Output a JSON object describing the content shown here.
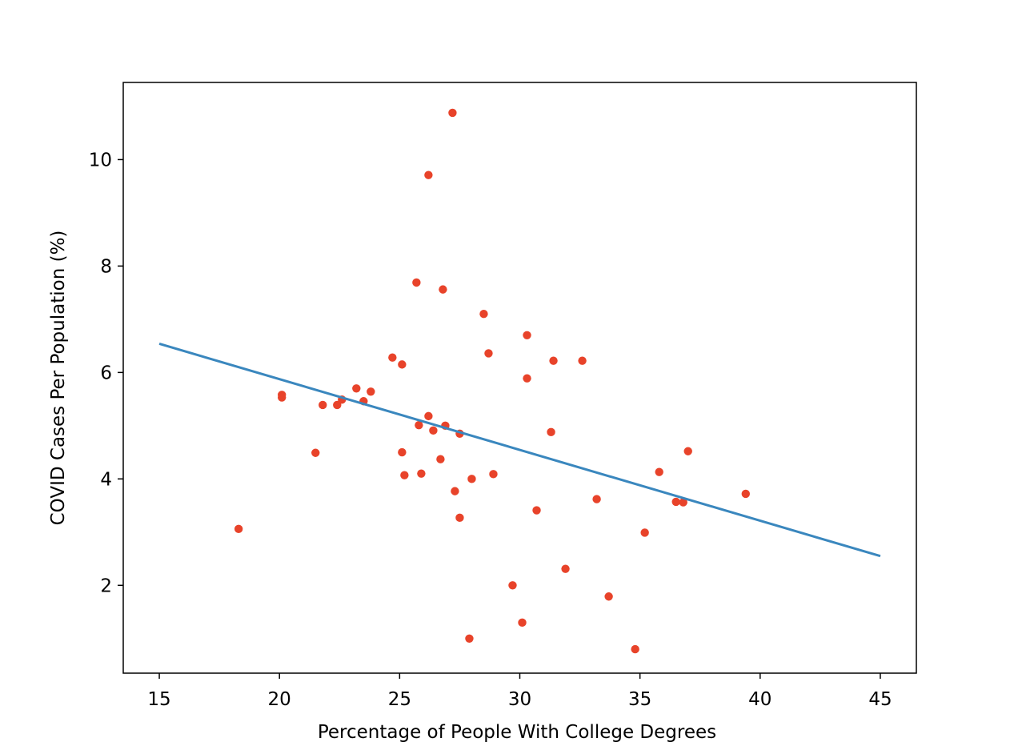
{
  "chart_data": {
    "type": "scatter",
    "title": "",
    "xlabel": "Percentage of People With College Degrees",
    "ylabel": "COVID Cases Per Population (%)",
    "xlim": [
      13.5,
      46.5
    ],
    "ylim": [
      0.35,
      11.45
    ],
    "xticks": [
      15,
      20,
      25,
      30,
      35,
      40,
      45
    ],
    "yticks": [
      2,
      4,
      6,
      8,
      10
    ],
    "grid": false,
    "legend": "none",
    "point_color": "#e8432a",
    "line_color": "#3a87be",
    "points": [
      [
        18.3,
        3.06
      ],
      [
        20.1,
        5.58
      ],
      [
        20.1,
        5.53
      ],
      [
        21.5,
        4.49
      ],
      [
        21.8,
        5.39
      ],
      [
        22.4,
        5.39
      ],
      [
        22.6,
        5.49
      ],
      [
        23.2,
        5.7
      ],
      [
        23.5,
        5.46
      ],
      [
        23.8,
        5.64
      ],
      [
        24.7,
        6.28
      ],
      [
        25.1,
        6.15
      ],
      [
        25.1,
        4.5
      ],
      [
        25.2,
        4.07
      ],
      [
        25.7,
        7.69
      ],
      [
        25.8,
        5.01
      ],
      [
        25.9,
        4.1
      ],
      [
        26.2,
        9.71
      ],
      [
        26.2,
        5.18
      ],
      [
        26.4,
        4.91
      ],
      [
        26.7,
        4.37
      ],
      [
        26.8,
        7.56
      ],
      [
        26.9,
        5.0
      ],
      [
        27.2,
        10.88
      ],
      [
        27.3,
        3.77
      ],
      [
        27.5,
        4.85
      ],
      [
        27.5,
        3.27
      ],
      [
        27.9,
        1.0
      ],
      [
        28.0,
        4.0
      ],
      [
        28.5,
        7.1
      ],
      [
        28.7,
        6.36
      ],
      [
        28.9,
        4.09
      ],
      [
        29.7,
        2.0
      ],
      [
        30.1,
        1.3
      ],
      [
        30.3,
        6.7
      ],
      [
        30.3,
        5.89
      ],
      [
        30.7,
        3.41
      ],
      [
        31.3,
        4.88
      ],
      [
        31.4,
        6.22
      ],
      [
        31.9,
        2.31
      ],
      [
        32.6,
        6.22
      ],
      [
        33.2,
        3.62
      ],
      [
        33.7,
        1.79
      ],
      [
        34.8,
        0.8
      ],
      [
        35.2,
        2.99
      ],
      [
        35.8,
        4.13
      ],
      [
        36.5,
        3.57
      ],
      [
        36.8,
        3.56
      ],
      [
        37.0,
        4.52
      ],
      [
        39.4,
        3.72
      ]
    ],
    "trendline": {
      "x": [
        15,
        45
      ],
      "y": [
        6.54,
        2.55
      ]
    }
  }
}
